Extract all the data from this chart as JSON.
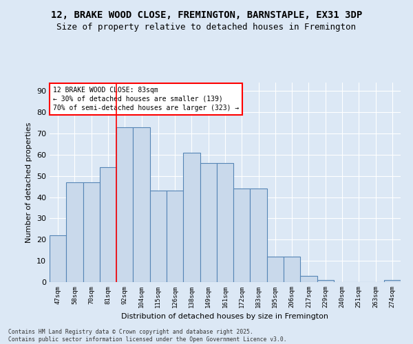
{
  "title1": "12, BRAKE WOOD CLOSE, FREMINGTON, BARNSTAPLE, EX31 3DP",
  "title2": "Size of property relative to detached houses in Fremington",
  "xlabel": "Distribution of detached houses by size in Fremington",
  "ylabel": "Number of detached properties",
  "categories": [
    "47sqm",
    "58sqm",
    "70sqm",
    "81sqm",
    "92sqm",
    "104sqm",
    "115sqm",
    "126sqm",
    "138sqm",
    "149sqm",
    "161sqm",
    "172sqm",
    "183sqm",
    "195sqm",
    "206sqm",
    "217sqm",
    "229sqm",
    "240sqm",
    "251sqm",
    "263sqm",
    "274sqm"
  ],
  "values": [
    22,
    47,
    47,
    54,
    73,
    73,
    43,
    43,
    61,
    56,
    56,
    44,
    44,
    12,
    12,
    3,
    1,
    0,
    0,
    0,
    1
  ],
  "bar_color": "#c9d9eb",
  "bar_edge_color": "#5585b5",
  "annotation_text": "12 BRAKE WOOD CLOSE: 83sqm\n← 30% of detached houses are smaller (139)\n70% of semi-detached houses are larger (323) →",
  "annotation_box_color": "white",
  "annotation_edge_color": "red",
  "ylim": [
    0,
    94
  ],
  "yticks": [
    0,
    10,
    20,
    30,
    40,
    50,
    60,
    70,
    80,
    90
  ],
  "background_color": "#dce8f5",
  "footer": "Contains HM Land Registry data © Crown copyright and database right 2025.\nContains public sector information licensed under the Open Government Licence v3.0.",
  "title_fontsize": 10,
  "subtitle_fontsize": 9,
  "red_line_index": 3.5
}
